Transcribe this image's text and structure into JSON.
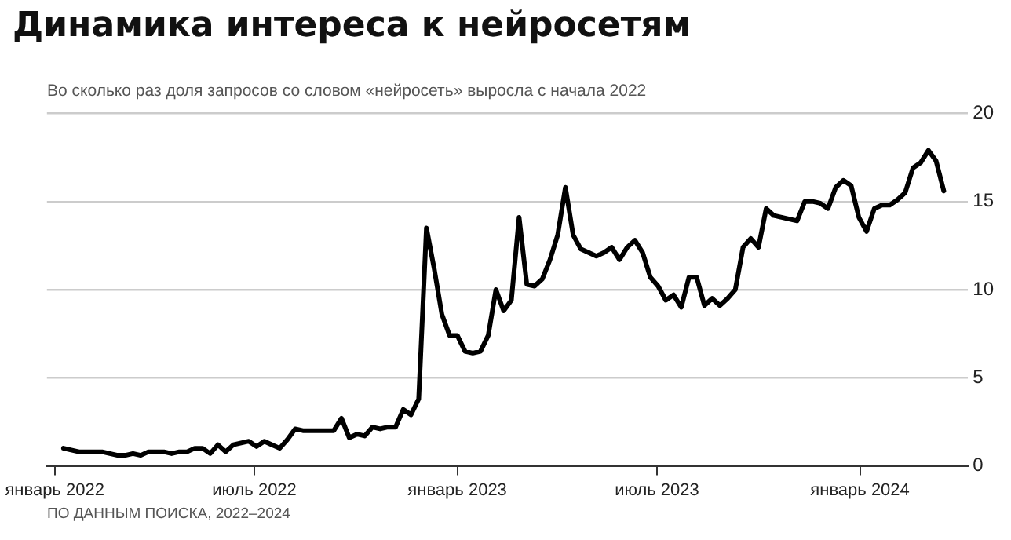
{
  "chart_data": {
    "type": "line",
    "title": "Динамика интереса к нейросетям",
    "subtitle": "Во сколько раз доля запросов со словом «нейросеть» выросла с начала 2022",
    "annotations": [
      "ПО ДАННЫМ ПОИСКА, 2022–2024"
    ],
    "x": [
      "2022-01-09",
      "2022-01-16",
      "2022-01-23",
      "2022-01-30",
      "2022-02-06",
      "2022-02-13",
      "2022-02-20",
      "2022-02-27",
      "2022-03-06",
      "2022-03-13",
      "2022-03-20",
      "2022-03-27",
      "2022-04-03",
      "2022-04-10",
      "2022-04-17",
      "2022-04-24",
      "2022-05-01",
      "2022-05-08",
      "2022-05-15",
      "2022-05-22",
      "2022-05-29",
      "2022-06-05",
      "2022-06-12",
      "2022-06-19",
      "2022-06-26",
      "2022-07-03",
      "2022-07-10",
      "2022-07-17",
      "2022-07-24",
      "2022-07-31",
      "2022-08-07",
      "2022-08-14",
      "2022-08-21",
      "2022-08-28",
      "2022-09-04",
      "2022-09-11",
      "2022-09-18",
      "2022-09-25",
      "2022-10-02",
      "2022-10-09",
      "2022-10-16",
      "2022-10-23",
      "2022-10-30",
      "2022-11-06",
      "2022-11-13",
      "2022-11-20",
      "2022-11-27",
      "2022-12-04",
      "2022-12-11",
      "2022-12-18",
      "2022-12-25",
      "2023-01-01",
      "2023-01-08",
      "2023-01-15",
      "2023-01-22",
      "2023-01-29",
      "2023-02-05",
      "2023-02-12",
      "2023-02-19",
      "2023-02-26",
      "2023-03-05",
      "2023-03-12",
      "2023-03-19",
      "2023-03-26",
      "2023-04-02",
      "2023-04-09",
      "2023-04-16",
      "2023-04-23",
      "2023-04-30",
      "2023-05-07",
      "2023-05-14",
      "2023-05-21",
      "2023-05-28",
      "2023-06-04",
      "2023-06-11",
      "2023-06-18",
      "2023-06-25",
      "2023-07-02",
      "2023-07-09",
      "2023-07-16",
      "2023-07-23",
      "2023-07-30",
      "2023-08-06",
      "2023-08-13",
      "2023-08-20",
      "2023-08-27",
      "2023-09-03",
      "2023-09-10",
      "2023-09-17",
      "2023-09-24",
      "2023-10-01",
      "2023-10-08",
      "2023-10-15",
      "2023-10-22",
      "2023-10-29",
      "2023-11-05",
      "2023-11-12",
      "2023-11-19",
      "2023-11-26",
      "2023-12-03",
      "2023-12-10",
      "2023-12-17",
      "2023-12-24",
      "2023-12-31",
      "2024-01-07",
      "2024-01-14",
      "2024-01-21",
      "2024-01-28",
      "2024-02-04",
      "2024-02-11",
      "2024-02-18",
      "2024-02-25",
      "2024-03-03",
      "2024-03-10",
      "2024-03-17"
    ],
    "series": [
      {
        "color": "#000000",
        "values": [
          1.0,
          0.9,
          0.8,
          0.8,
          0.8,
          0.8,
          0.7,
          0.6,
          0.6,
          0.7,
          0.6,
          0.8,
          0.8,
          0.8,
          0.7,
          0.8,
          0.8,
          1.0,
          1.0,
          0.7,
          1.2,
          0.8,
          1.2,
          1.3,
          1.4,
          1.1,
          1.4,
          1.2,
          1.0,
          1.5,
          2.1,
          2.0,
          2.0,
          2.0,
          2.0,
          2.0,
          2.7,
          1.6,
          1.8,
          1.7,
          2.2,
          2.1,
          2.2,
          2.2,
          3.2,
          2.9,
          3.8,
          13.5,
          11.2,
          8.6,
          7.4,
          7.4,
          6.5,
          6.4,
          6.5,
          7.4,
          10.0,
          8.8,
          9.4,
          14.1,
          10.3,
          10.2,
          10.6,
          11.7,
          13.1,
          15.8,
          13.1,
          12.3,
          12.1,
          11.9,
          12.1,
          12.4,
          11.7,
          12.4,
          12.8,
          12.1,
          10.7,
          10.2,
          9.4,
          9.7,
          9.0,
          10.7,
          10.7,
          9.1,
          9.5,
          9.1,
          9.5,
          10.0,
          12.4,
          12.9,
          12.4,
          14.6,
          14.2,
          14.1,
          14.0,
          13.9,
          15.0,
          15.0,
          14.9,
          14.6,
          15.8,
          16.2,
          15.9,
          14.1,
          13.3,
          14.6,
          14.8,
          14.8,
          15.1,
          15.5,
          16.9,
          17.2,
          17.9,
          17.3,
          15.6
        ]
      }
    ],
    "xlim": [
      "2021-12-25",
      "2024-04-08"
    ],
    "xticks": [
      {
        "value": "2022-01-01",
        "label": "январь 2022"
      },
      {
        "value": "2022-07-01",
        "label": "июль 2022"
      },
      {
        "value": "2023-01-01",
        "label": "январь 2023"
      },
      {
        "value": "2023-07-01",
        "label": "июль 2023"
      },
      {
        "value": "2024-01-01",
        "label": "январь 2024"
      }
    ],
    "ylim": [
      0,
      20
    ],
    "yticks": [
      0,
      5,
      10,
      15,
      20
    ],
    "grid": "y",
    "legend": false,
    "marker": "none",
    "line_style": "solid"
  }
}
